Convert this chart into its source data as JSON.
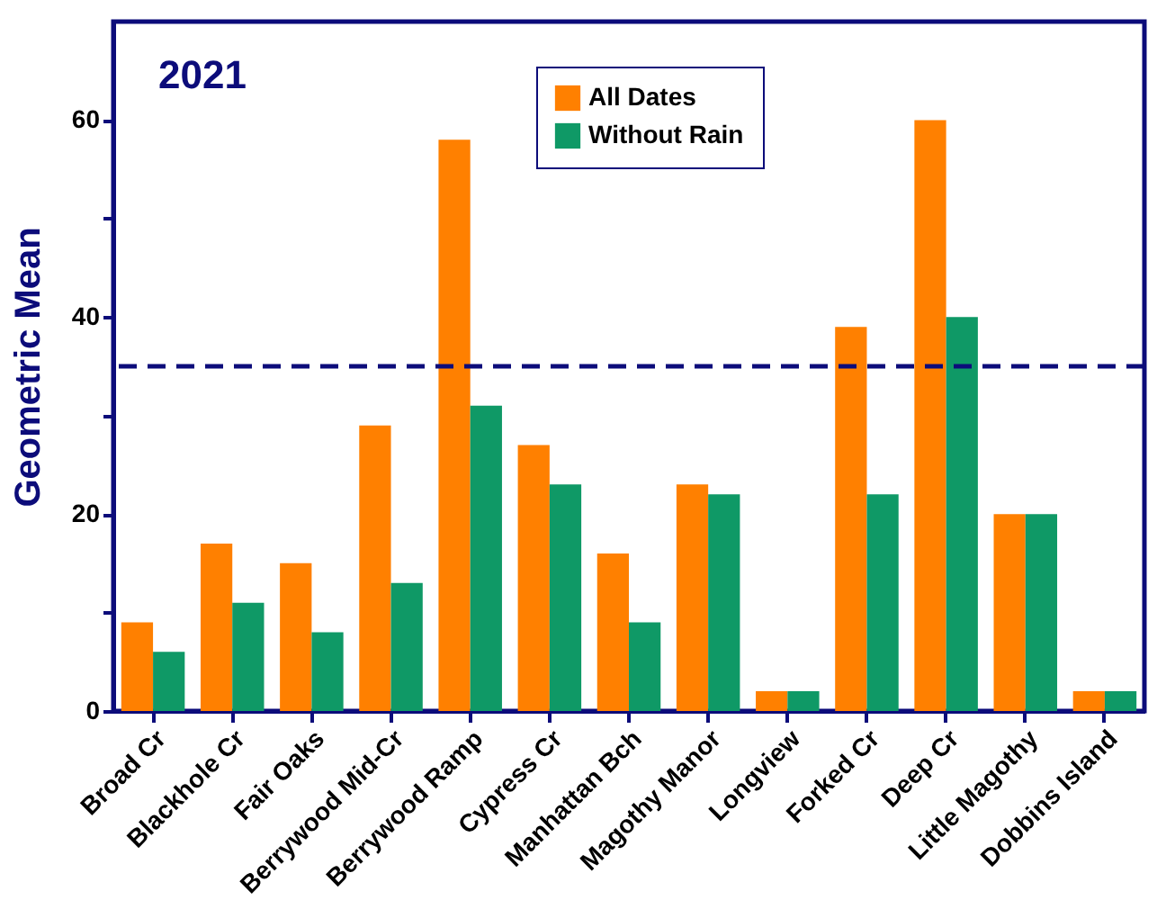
{
  "chart_data": {
    "type": "bar",
    "ylabel": "Geometric Mean",
    "annotations": [
      "2021"
    ],
    "categories": [
      "Broad Cr",
      "Blackhole Cr",
      "Fair Oaks",
      "Berrywood Mid-Cr",
      "Berrywood Ramp",
      "Cypress Cr",
      "Manhattan Bch",
      "Magothy Manor",
      "Longview",
      "Forked Cr",
      "Deep Cr",
      "Little Magothy",
      "Dobbins Island"
    ],
    "series": [
      {
        "name": "All Dates",
        "color": "#ff8000",
        "values": [
          9,
          17,
          15,
          29,
          58,
          27,
          16,
          23,
          2,
          39,
          60,
          20,
          2
        ]
      },
      {
        "name": "Without Rain",
        "color": "#0f9966",
        "values": [
          6,
          11,
          8,
          13,
          31,
          23,
          9,
          22,
          2,
          22,
          40,
          20,
          2
        ]
      }
    ],
    "ylim": [
      0,
      70
    ],
    "yticks": [
      0,
      {
        "value": 10,
        "label": null
      },
      20,
      {
        "value": 30,
        "label": null
      },
      40,
      {
        "value": 50,
        "label": null
      },
      60
    ],
    "ref_lines": [
      {
        "axis": "y",
        "value": 35,
        "label": null,
        "color": "#0c0c7a",
        "line_style": "dashed"
      }
    ],
    "grid": false,
    "legend": "top"
  }
}
